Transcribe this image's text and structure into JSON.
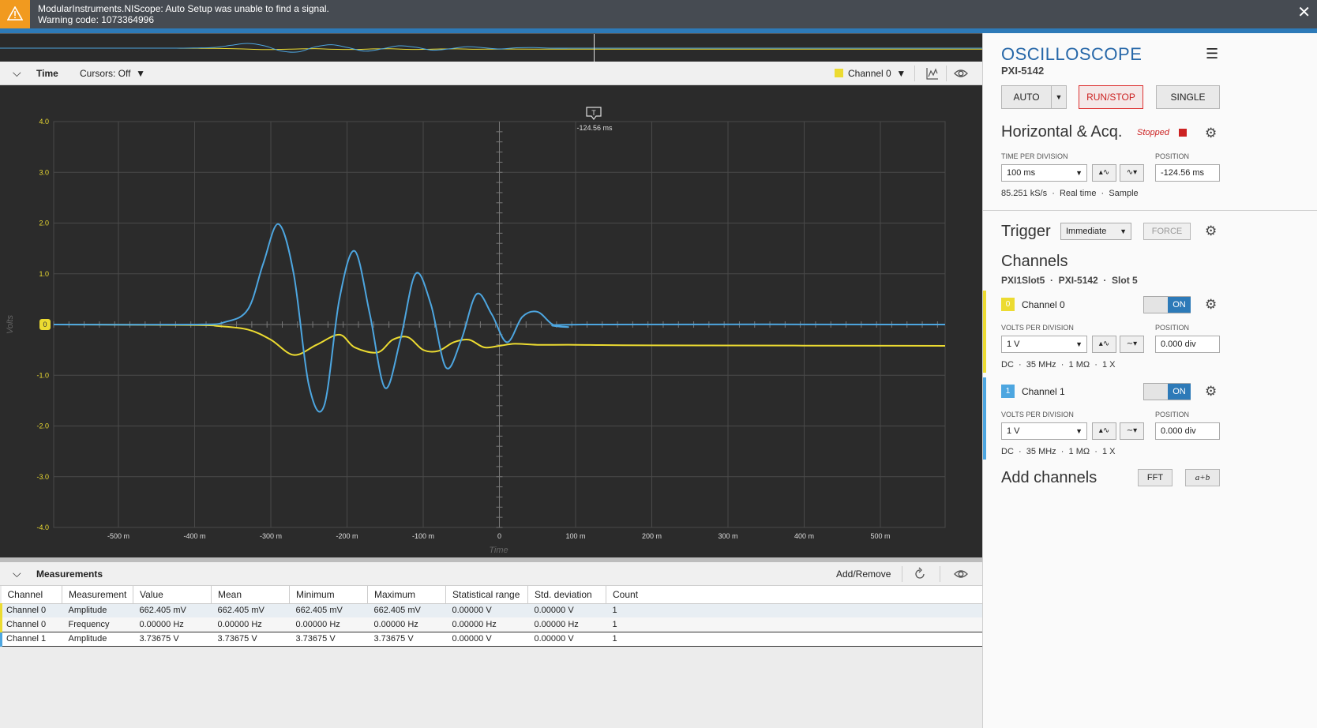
{
  "banner": {
    "line1": "ModularInstruments.NIScope: Auto Setup was unable to find a signal.",
    "line2": "Warning code: 1073364996",
    "color": "#464b52",
    "warn_color": "#f19a1f"
  },
  "time_header": {
    "title": "Time",
    "cursors": "Cursors: Off",
    "channel_select": "Channel 0"
  },
  "plot": {
    "trigger_marker": "T",
    "trigger_label": "-124.56 ms",
    "y_axis_label": "Volts",
    "x_axis_label": "Time",
    "zero_marker": "0",
    "y_ticks": [
      "4.0",
      "3.0",
      "2.0",
      "1.0",
      "0",
      "-1.0",
      "-2.0",
      "-3.0",
      "-4.0"
    ],
    "x_ticks": [
      "-500 m",
      "-400 m",
      "-300 m",
      "-200 m",
      "-100 m",
      "0",
      "100 m",
      "200 m",
      "300 m",
      "400 m",
      "500 m"
    ],
    "ch0_color": "#ecdb31",
    "ch1_color": "#4da6e0",
    "grid_color": "#4a4a4a",
    "bg_color": "#2b2b2b"
  },
  "chart_data": {
    "type": "line",
    "xlabel": "Time",
    "ylabel": "Volts",
    "xlim": [
      -0.585,
      0.585
    ],
    "ylim": [
      -4.0,
      4.0
    ],
    "series": [
      {
        "name": "Channel 0",
        "color": "#ecdb31",
        "x": [
          -0.585,
          -0.4,
          -0.37,
          -0.33,
          -0.3,
          -0.27,
          -0.24,
          -0.21,
          -0.19,
          -0.16,
          -0.14,
          -0.12,
          -0.1,
          -0.08,
          -0.06,
          -0.04,
          -0.02,
          0.0,
          0.02,
          0.05,
          0.1,
          0.2,
          0.585
        ],
        "y": [
          0.0,
          -0.01,
          -0.03,
          -0.1,
          -0.3,
          -0.6,
          -0.4,
          -0.2,
          -0.45,
          -0.55,
          -0.3,
          -0.25,
          -0.5,
          -0.52,
          -0.35,
          -0.3,
          -0.45,
          -0.42,
          -0.38,
          -0.4,
          -0.4,
          -0.41,
          -0.42
        ]
      },
      {
        "name": "Channel 1",
        "color": "#4da6e0",
        "x": [
          -0.585,
          -0.4,
          -0.36,
          -0.33,
          -0.31,
          -0.29,
          -0.27,
          -0.25,
          -0.23,
          -0.21,
          -0.19,
          -0.17,
          -0.15,
          -0.13,
          -0.11,
          -0.09,
          -0.07,
          -0.05,
          -0.03,
          -0.01,
          0.01,
          0.03,
          0.05,
          0.07,
          0.09,
          0.11,
          0.585
        ],
        "y": [
          0.0,
          0.0,
          0.05,
          0.3,
          1.2,
          1.98,
          1.0,
          -1.2,
          -1.6,
          0.5,
          1.45,
          0.2,
          -1.25,
          -0.3,
          1.0,
          0.4,
          -0.85,
          -0.3,
          0.6,
          0.2,
          -0.35,
          0.15,
          0.25,
          0.0,
          -0.05,
          0.0,
          0.0
        ]
      }
    ]
  },
  "measurements": {
    "title": "Measurements",
    "add_remove": "Add/Remove",
    "columns": [
      "Channel",
      "Measurement",
      "Value",
      "Mean",
      "Minimum",
      "Maximum",
      "Statistical range",
      "Std. deviation",
      "Count"
    ],
    "rows": [
      [
        "Channel 0",
        "Amplitude",
        "662.405 mV",
        "662.405 mV",
        "662.405 mV",
        "662.405 mV",
        "0.00000 V",
        "0.00000 V",
        "1"
      ],
      [
        "Channel 0",
        "Frequency",
        "0.00000 Hz",
        "0.00000 Hz",
        "0.00000 Hz",
        "0.00000 Hz",
        "0.00000 Hz",
        "0.00000 Hz",
        "1"
      ],
      [
        "Channel 1",
        "Amplitude",
        "3.73675 V",
        "3.73675 V",
        "3.73675 V",
        "3.73675 V",
        "0.00000 V",
        "0.00000 V",
        "1"
      ]
    ]
  },
  "panel": {
    "title": "OSCILLOSCOPE",
    "subtitle": "PXI-5142",
    "auto": "AUTO",
    "runstop": "RUN/STOP",
    "single": "SINGLE",
    "horizontal": {
      "title": "Horizontal & Acq.",
      "status": "Stopped",
      "tpd_label": "TIME PER DIVISION",
      "tpd_value": "100 ms",
      "pos_label": "POSITION",
      "pos_value": "-124.56 ms",
      "info": "85.251 kS/s  ·  Real time  ·  Sample"
    },
    "trigger": {
      "title": "Trigger",
      "mode": "Immediate",
      "force": "FORCE"
    },
    "channels": {
      "title": "Channels",
      "device": "PXI1Slot5  ·  PXI-5142  ·  Slot 5",
      "list": [
        {
          "num": "0",
          "name": "Channel 0",
          "state": "ON",
          "vpd_label": "VOLTS PER DIVISION",
          "vpd": "1 V",
          "pos_label": "POSITION",
          "pos": "0.000 div",
          "info": "DC  ·  35 MHz  ·  1 MΩ  ·  1 X",
          "color": "#ecdb31"
        },
        {
          "num": "1",
          "name": "Channel 1",
          "state": "ON",
          "vpd_label": "VOLTS PER DIVISION",
          "vpd": "1 V",
          "pos_label": "POSITION",
          "pos": "0.000 div",
          "info": "DC  ·  35 MHz  ·  1 MΩ  ·  1 X",
          "color": "#4da6e0"
        }
      ]
    },
    "add_channels": {
      "title": "Add channels",
      "fft": "FFT",
      "math": "a+b"
    }
  }
}
